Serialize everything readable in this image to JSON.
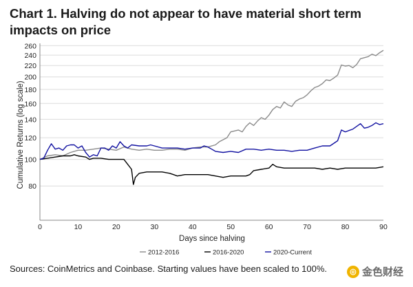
{
  "page": {
    "title": "Chart 1. Halving do not appear to have material short term impacts on price",
    "source": "Sources: CoinMetrics and Coinbase. Starting values have been scaled to 100%.",
    "watermark": "金色财经"
  },
  "chart_data": {
    "type": "line",
    "xlabel": "Days since halving",
    "ylabel": "Cumulative Returns (log scale)",
    "xlim": [
      0,
      90
    ],
    "ylim": [
      60,
      265
    ],
    "yscale": "log",
    "x_ticks": [
      0,
      10,
      20,
      30,
      40,
      50,
      60,
      70,
      80,
      90
    ],
    "y_ticks": [
      80,
      100,
      120,
      140,
      160,
      180,
      200,
      220,
      240,
      260
    ],
    "grid": "horizontal",
    "legend_position": "bottom",
    "series": [
      {
        "name": "2012-2016",
        "color": "#8a8a8a",
        "points": [
          [
            0,
            100
          ],
          [
            2,
            103
          ],
          [
            4,
            104
          ],
          [
            6,
            103
          ],
          [
            8,
            106
          ],
          [
            10,
            108
          ],
          [
            12,
            108
          ],
          [
            14,
            109
          ],
          [
            16,
            110
          ],
          [
            18,
            109
          ],
          [
            20,
            108
          ],
          [
            22,
            111
          ],
          [
            24,
            109
          ],
          [
            26,
            108
          ],
          [
            28,
            109
          ],
          [
            30,
            108
          ],
          [
            32,
            108
          ],
          [
            34,
            109
          ],
          [
            36,
            109
          ],
          [
            38,
            108
          ],
          [
            40,
            110
          ],
          [
            42,
            111
          ],
          [
            44,
            111
          ],
          [
            46,
            113
          ],
          [
            47,
            116
          ],
          [
            49,
            120
          ],
          [
            50,
            126
          ],
          [
            52,
            128
          ],
          [
            53,
            126
          ],
          [
            54,
            132
          ],
          [
            55,
            136
          ],
          [
            56,
            133
          ],
          [
            57,
            138
          ],
          [
            58,
            142
          ],
          [
            59,
            140
          ],
          [
            60,
            145
          ],
          [
            61,
            152
          ],
          [
            62,
            156
          ],
          [
            63,
            154
          ],
          [
            64,
            162
          ],
          [
            65,
            158
          ],
          [
            66,
            156
          ],
          [
            67,
            163
          ],
          [
            68,
            166
          ],
          [
            69,
            168
          ],
          [
            70,
            172
          ],
          [
            71,
            178
          ],
          [
            72,
            183
          ],
          [
            73,
            185
          ],
          [
            74,
            189
          ],
          [
            75,
            195
          ],
          [
            76,
            194
          ],
          [
            77,
            198
          ],
          [
            78,
            203
          ],
          [
            79,
            221
          ],
          [
            80,
            219
          ],
          [
            81,
            220
          ],
          [
            82,
            216
          ],
          [
            83,
            222
          ],
          [
            84,
            233
          ],
          [
            85,
            235
          ],
          [
            86,
            237
          ],
          [
            87,
            242
          ],
          [
            88,
            239
          ],
          [
            89,
            245
          ],
          [
            90,
            250
          ]
        ]
      },
      {
        "name": "2016-2020",
        "color": "#000000",
        "points": [
          [
            0,
            100
          ],
          [
            2,
            101
          ],
          [
            4,
            102
          ],
          [
            6,
            103
          ],
          [
            8,
            103
          ],
          [
            9,
            104
          ],
          [
            10,
            103
          ],
          [
            12,
            102
          ],
          [
            13,
            100
          ],
          [
            14,
            101
          ],
          [
            16,
            101
          ],
          [
            18,
            100
          ],
          [
            20,
            100
          ],
          [
            22,
            100
          ],
          [
            23,
            96
          ],
          [
            24,
            92
          ],
          [
            24.5,
            81
          ],
          [
            25,
            86
          ],
          [
            26,
            89
          ],
          [
            28,
            90
          ],
          [
            30,
            90
          ],
          [
            32,
            90
          ],
          [
            34,
            89
          ],
          [
            35,
            88
          ],
          [
            36,
            87
          ],
          [
            38,
            88
          ],
          [
            40,
            88
          ],
          [
            42,
            88
          ],
          [
            44,
            88
          ],
          [
            46,
            87
          ],
          [
            48,
            86
          ],
          [
            50,
            87
          ],
          [
            52,
            87
          ],
          [
            54,
            87
          ],
          [
            55,
            88
          ],
          [
            56,
            91
          ],
          [
            58,
            92
          ],
          [
            60,
            93
          ],
          [
            61,
            96
          ],
          [
            62,
            94
          ],
          [
            64,
            93
          ],
          [
            66,
            93
          ],
          [
            68,
            93
          ],
          [
            70,
            93
          ],
          [
            72,
            93
          ],
          [
            74,
            92
          ],
          [
            76,
            93
          ],
          [
            78,
            92
          ],
          [
            80,
            93
          ],
          [
            82,
            93
          ],
          [
            84,
            93
          ],
          [
            86,
            93
          ],
          [
            88,
            93
          ],
          [
            90,
            94
          ]
        ]
      },
      {
        "name": "2020-Current",
        "color": "#1010a0",
        "points": [
          [
            0,
            100
          ],
          [
            1,
            101
          ],
          [
            2,
            108
          ],
          [
            3,
            114
          ],
          [
            4,
            109
          ],
          [
            5,
            110
          ],
          [
            6,
            108
          ],
          [
            7,
            112
          ],
          [
            8,
            113
          ],
          [
            9,
            113
          ],
          [
            10,
            110
          ],
          [
            11,
            112
          ],
          [
            12,
            106
          ],
          [
            13,
            102
          ],
          [
            14,
            104
          ],
          [
            15,
            103
          ],
          [
            16,
            110
          ],
          [
            17,
            110
          ],
          [
            18,
            108
          ],
          [
            19,
            112
          ],
          [
            20,
            110
          ],
          [
            21,
            116
          ],
          [
            22,
            112
          ],
          [
            23,
            110
          ],
          [
            24,
            113
          ],
          [
            26,
            112
          ],
          [
            28,
            112
          ],
          [
            29,
            113
          ],
          [
            30,
            112
          ],
          [
            32,
            110
          ],
          [
            34,
            110
          ],
          [
            36,
            110
          ],
          [
            38,
            109
          ],
          [
            40,
            110
          ],
          [
            42,
            110
          ],
          [
            43,
            112
          ],
          [
            44,
            111
          ],
          [
            45,
            109
          ],
          [
            46,
            107
          ],
          [
            48,
            106
          ],
          [
            50,
            107
          ],
          [
            52,
            106
          ],
          [
            54,
            109
          ],
          [
            56,
            109
          ],
          [
            58,
            108
          ],
          [
            60,
            109
          ],
          [
            62,
            108
          ],
          [
            64,
            108
          ],
          [
            66,
            107
          ],
          [
            68,
            108
          ],
          [
            70,
            108
          ],
          [
            72,
            110
          ],
          [
            74,
            112
          ],
          [
            76,
            112
          ],
          [
            78,
            117
          ],
          [
            79,
            128
          ],
          [
            80,
            126
          ],
          [
            82,
            129
          ],
          [
            84,
            135
          ],
          [
            85,
            130
          ],
          [
            86,
            131
          ],
          [
            87,
            133
          ],
          [
            88,
            136
          ],
          [
            89,
            134
          ],
          [
            90,
            135
          ]
        ]
      }
    ]
  }
}
